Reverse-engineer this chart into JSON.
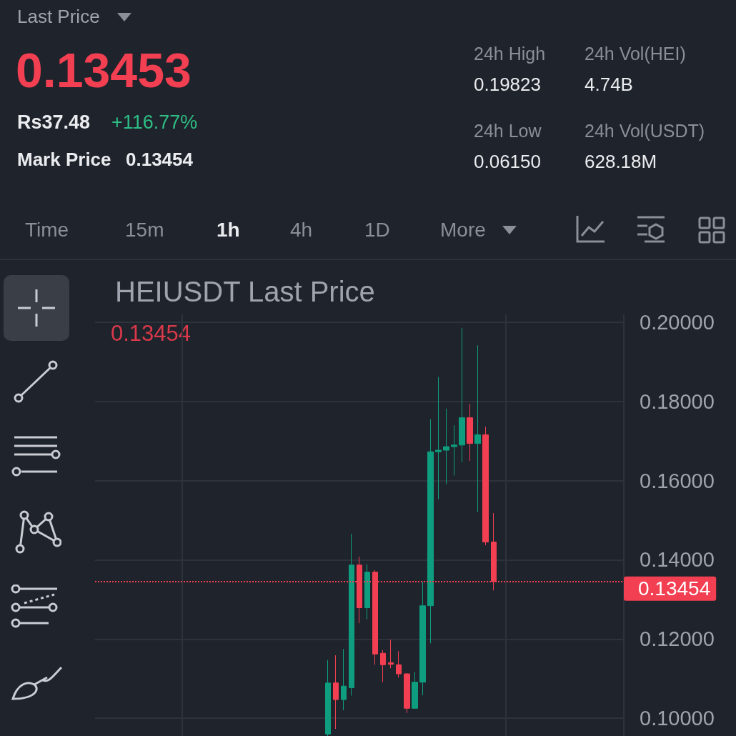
{
  "chart_data": [
    {
      "type": "other",
      "annotations": [
        "Last Price",
        "0.13453",
        "Rs37.48",
        "+116.77%",
        "Mark Price",
        "0.13454",
        "24h High",
        "0.19823",
        "24h Vol(HEI)",
        "4.74B",
        "24h Low",
        "0.06150",
        "24h Vol(USDT)",
        "628.18M",
        "Time",
        "15m",
        "1h",
        "4h",
        "1D",
        "More"
      ]
    },
    {
      "type": "candlestick",
      "title": "HEIUSDT Last Price",
      "annotations": [
        "0.13454"
      ],
      "categories": [
        null,
        null,
        null,
        null,
        null,
        null,
        null,
        null,
        null,
        null,
        null,
        null,
        null,
        null,
        null,
        null,
        null,
        null,
        null,
        null,
        null,
        null,
        null,
        null,
        null,
        null,
        null,
        null,
        null,
        null,
        null,
        null,
        null,
        null,
        null,
        null,
        null,
        null,
        null,
        null,
        null,
        null,
        null,
        null,
        null,
        null,
        null,
        null,
        null,
        null,
        null,
        null,
        null,
        null,
        null,
        null,
        null,
        null,
        null,
        null,
        null,
        null,
        null,
        null,
        null,
        null,
        null
      ],
      "ohlc": [
        null,
        null,
        null,
        null,
        null,
        null,
        null,
        null,
        null,
        null,
        null,
        null,
        null,
        null,
        null,
        null,
        null,
        null,
        null,
        null,
        null,
        null,
        null,
        null,
        null,
        null,
        null,
        null,
        null,
        [
          0.096,
          0.1147,
          0.0955,
          0.1089
        ],
        [
          0.1089,
          0.1159,
          0.0973,
          0.1047
        ],
        [
          0.1047,
          0.1175,
          0.102,
          0.1081
        ],
        [
          0.1077,
          0.1466,
          0.1057,
          0.1387
        ],
        [
          0.1387,
          0.1408,
          0.124,
          0.1279
        ],
        [
          0.1279,
          0.1389,
          0.125,
          0.1369
        ],
        [
          0.1369,
          0.1374,
          0.1135,
          0.1162
        ],
        [
          0.1164,
          0.1172,
          0.1091,
          0.1135
        ],
        [
          0.114,
          0.1198,
          0.1126,
          0.1136
        ],
        [
          0.1135,
          0.1169,
          0.1103,
          0.1112
        ],
        [
          0.1112,
          0.1114,
          0.1013,
          0.1025
        ],
        [
          0.1025,
          0.1117,
          0.1025,
          0.1091
        ],
        [
          0.1091,
          0.1345,
          0.1058,
          0.1284
        ],
        [
          0.1284,
          0.1755,
          0.1189,
          0.1673
        ],
        [
          0.1673,
          0.1862,
          0.1553,
          0.1677
        ],
        [
          0.1677,
          0.1782,
          0.1591,
          0.1686
        ],
        [
          0.1686,
          0.174,
          0.1613,
          0.169
        ],
        [
          0.169,
          0.1986,
          0.1647,
          0.1759
        ],
        [
          0.1759,
          0.1794,
          0.165,
          0.1694
        ],
        [
          0.1694,
          0.1942,
          0.1521,
          0.1716
        ],
        [
          0.1716,
          0.1736,
          0.1437,
          0.1445
        ],
        [
          0.1445,
          0.1518,
          0.1323,
          0.13454
        ],
        null,
        null,
        null,
        null,
        null,
        null,
        null,
        null,
        null,
        null,
        null,
        null,
        null,
        null,
        null,
        null
      ],
      "colors": [
        null,
        null,
        null,
        null,
        null,
        null,
        null,
        null,
        null,
        null,
        null,
        null,
        null,
        null,
        null,
        null,
        null,
        null,
        null,
        null,
        null,
        null,
        null,
        null,
        null,
        null,
        null,
        null,
        null,
        "#0e9e7f",
        "#f23f52",
        "#0e9e7f",
        "#0e9e7f",
        "#f23f52",
        "#0e9e7f",
        "#f23f52",
        "#f23f52",
        "#f23f52",
        "#f23f52",
        "#f23f52",
        "#0e9e7f",
        "#0e9e7f",
        "#0e9e7f",
        "#0e9e7f",
        "#0e9e7f",
        "#0e9e7f",
        "#0e9e7f",
        "#f23f52",
        "#0e9e7f",
        "#f23f52",
        "#f23f52",
        null,
        null,
        null,
        null,
        null,
        null,
        null,
        null,
        null,
        null,
        null,
        null,
        null,
        null,
        null,
        null
      ],
      "ylim": [
        0.0955,
        0.202
      ],
      "yticks": [
        {
          "value": 0.1,
          "label": "0.10000"
        },
        {
          "value": 0.12,
          "label": "0.12000"
        },
        {
          "value": 0.14,
          "label": "0.14000"
        },
        {
          "value": 0.16,
          "label": "0.16000"
        },
        {
          "value": 0.18,
          "label": "0.18000"
        },
        {
          "value": 0.2,
          "label": "0.20000"
        }
      ],
      "ref_lines": [
        {
          "axis": "y",
          "value": 0.13454,
          "label": "0.13454",
          "color": "#f23f52",
          "line_style": "dotted"
        }
      ],
      "grid": true,
      "tick_labels": "y"
    }
  ]
}
